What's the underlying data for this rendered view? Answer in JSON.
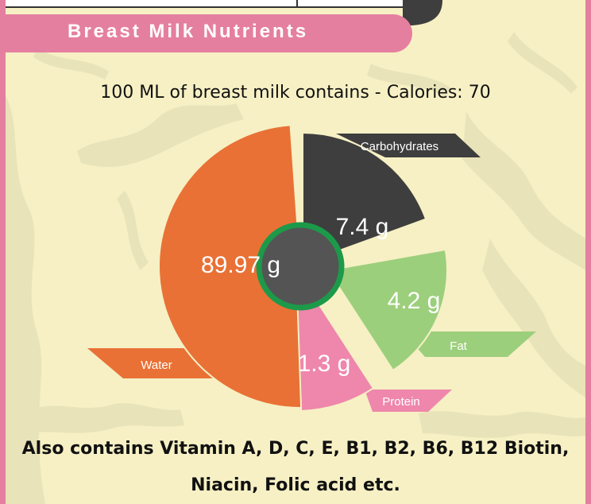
{
  "header": {
    "title": "Breast Milk Nutrients"
  },
  "subtitle": "100 ML of breast milk contains  - Calories: 70",
  "chart_data": {
    "type": "pie",
    "title": "",
    "unit": "g",
    "slices": [
      {
        "name": "Water",
        "value": 89.97,
        "label": "89.97 g",
        "color": "#e97135"
      },
      {
        "name": "Carbohydrates",
        "value": 7.4,
        "label": "7.4 g",
        "color": "#3e3e3e"
      },
      {
        "name": "Fat",
        "value": 4.2,
        "label": "4.2 g",
        "color": "#9ccf7c"
      },
      {
        "name": "Protein",
        "value": 1.3,
        "label": "1.3 g",
        "color": "#ee87ab"
      }
    ],
    "center_color": "#545454",
    "center_ring_color": "#1c9a4a"
  },
  "footer": {
    "line1": "Also contains Vitamin A, D, C, E, B1, B2, B6, B12 Biotin,",
    "line2": "Niacin, Folic acid etc."
  },
  "colors": {
    "frame": "#e57fa0",
    "background": "#f6f0c4",
    "texture": "#e7e2b8"
  }
}
